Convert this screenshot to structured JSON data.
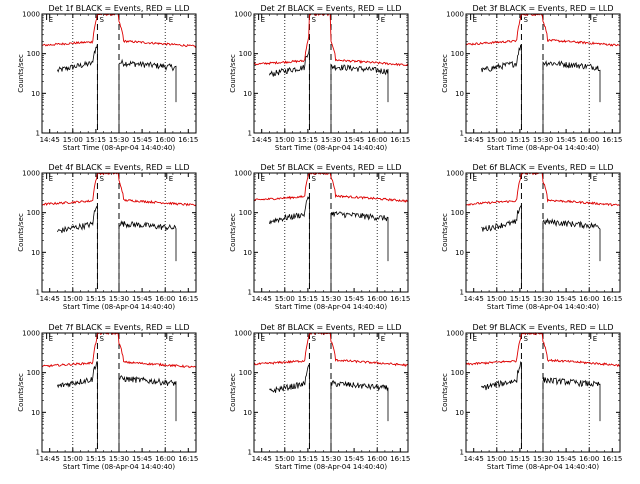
{
  "colors": {
    "events": "#000000",
    "lld": "#dd0000",
    "background": "#ffffff"
  },
  "chart_data": [
    {
      "type": "line",
      "detector": "Det 1f",
      "title": "Det 1f  BLACK = Events, RED = LLD",
      "xlabel": "Start Time (08-Apr-04 14:40:40)",
      "ylabel": "Counts/sec",
      "xticks": [
        "14:45",
        "15:00",
        "15:15",
        "15:30",
        "15:45",
        "16:00",
        "16:15"
      ],
      "yticks": [
        "1",
        "10",
        "100",
        "1000"
      ],
      "yscale": "log",
      "ylim": [
        1,
        1000
      ],
      "markers": [
        {
          "label": "E",
          "x": "14:43"
        },
        {
          "label": "S",
          "x": "15:16"
        },
        {
          "label": "E",
          "x": "16:01"
        }
      ],
      "events_level": 50,
      "lld_level": 180,
      "series": [
        {
          "name": "BLACK = Events",
          "role": "events"
        },
        {
          "name": "RED = LLD",
          "role": "lld"
        }
      ]
    },
    {
      "type": "line",
      "detector": "Det 2f",
      "title": "Det 2f  BLACK = Events, RED = LLD",
      "xlabel": "Start Time (08-Apr-04 14:40:40)",
      "ylabel": "Counts/sec",
      "xticks": [
        "14:45",
        "15:00",
        "15:15",
        "15:30",
        "15:45",
        "16:00",
        "16:15"
      ],
      "yticks": [
        "1",
        "10",
        "100",
        "1000"
      ],
      "yscale": "log",
      "ylim": [
        1,
        1000
      ],
      "markers": [
        {
          "label": "E",
          "x": "14:43"
        },
        {
          "label": "S",
          "x": "15:16"
        },
        {
          "label": "E",
          "x": "16:01"
        }
      ],
      "events_level": 40,
      "lld_level": 60,
      "series": [
        {
          "name": "BLACK = Events",
          "role": "events"
        },
        {
          "name": "RED = LLD",
          "role": "lld"
        }
      ]
    },
    {
      "type": "line",
      "detector": "Det 3f",
      "title": "Det 3f  BLACK = Events, RED = LLD",
      "xlabel": "Start Time (08-Apr-04 14:40:40)",
      "ylabel": "Counts/sec",
      "xticks": [
        "14:45",
        "15:00",
        "15:15",
        "15:30",
        "15:45",
        "16:00",
        "16:15"
      ],
      "yticks": [
        "1",
        "10",
        "100",
        "1000"
      ],
      "yscale": "log",
      "ylim": [
        1,
        1000
      ],
      "markers": [
        {
          "label": "E",
          "x": "14:43"
        },
        {
          "label": "S",
          "x": "15:16"
        },
        {
          "label": "E",
          "x": "16:01"
        }
      ],
      "events_level": 50,
      "lld_level": 190,
      "series": [
        {
          "name": "BLACK = Events",
          "role": "events"
        },
        {
          "name": "RED = LLD",
          "role": "lld"
        }
      ]
    },
    {
      "type": "line",
      "detector": "Det 4f",
      "title": "Det 4f  BLACK = Events, RED = LLD",
      "xlabel": "Start Time (08-Apr-04 14:40:40)",
      "ylabel": "Counts/sec",
      "xticks": [
        "14:45",
        "15:00",
        "15:15",
        "15:30",
        "15:45",
        "16:00",
        "16:15"
      ],
      "yticks": [
        "1",
        "10",
        "100",
        "1000"
      ],
      "yscale": "log",
      "ylim": [
        1,
        1000
      ],
      "markers": [
        {
          "label": "E",
          "x": "14:43"
        },
        {
          "label": "S",
          "x": "15:16"
        },
        {
          "label": "E",
          "x": "16:01"
        }
      ],
      "events_level": 45,
      "lld_level": 180,
      "series": [
        {
          "name": "BLACK = Events",
          "role": "events"
        },
        {
          "name": "RED = LLD",
          "role": "lld"
        }
      ]
    },
    {
      "type": "line",
      "detector": "Det 5f",
      "title": "Det 5f  BLACK = Events, RED = LLD",
      "xlabel": "Start Time (08-Apr-04 14:40:40)",
      "ylabel": "Counts/sec",
      "xticks": [
        "14:45",
        "15:00",
        "15:15",
        "15:30",
        "15:45",
        "16:00",
        "16:15"
      ],
      "yticks": [
        "1",
        "10",
        "100",
        "1000"
      ],
      "yscale": "log",
      "ylim": [
        1,
        1000
      ],
      "markers": [
        {
          "label": "E",
          "x": "14:43"
        },
        {
          "label": "S",
          "x": "15:16"
        },
        {
          "label": "E",
          "x": "16:01"
        }
      ],
      "events_level": 80,
      "lld_level": 230,
      "series": [
        {
          "name": "BLACK = Events",
          "role": "events"
        },
        {
          "name": "RED = LLD",
          "role": "lld"
        }
      ]
    },
    {
      "type": "line",
      "detector": "Det 6f",
      "title": "Det 6f  BLACK = Events, RED = LLD",
      "xlabel": "Start Time (08-Apr-04 14:40:40)",
      "ylabel": "Counts/sec",
      "xticks": [
        "14:45",
        "15:00",
        "15:15",
        "15:30",
        "15:45",
        "16:00",
        "16:15"
      ],
      "yticks": [
        "1",
        "10",
        "100",
        "1000"
      ],
      "yscale": "log",
      "ylim": [
        1,
        1000
      ],
      "markers": [
        {
          "label": "E",
          "x": "14:43"
        },
        {
          "label": "S",
          "x": "15:16"
        },
        {
          "label": "E",
          "x": "16:01"
        }
      ],
      "events_level": 50,
      "lld_level": 180,
      "series": [
        {
          "name": "BLACK = Events",
          "role": "events"
        },
        {
          "name": "RED = LLD",
          "role": "lld"
        }
      ]
    },
    {
      "type": "line",
      "detector": "Det 7f",
      "title": "Det 7f  BLACK = Events, RED = LLD",
      "xlabel": "Start Time (08-Apr-04 14:40:40)",
      "ylabel": "Counts/sec",
      "xticks": [
        "14:45",
        "15:00",
        "15:15",
        "15:30",
        "15:45",
        "16:00",
        "16:15"
      ],
      "yticks": [
        "1",
        "10",
        "100",
        "1000"
      ],
      "yscale": "log",
      "ylim": [
        1,
        1000
      ],
      "markers": [
        {
          "label": "E",
          "x": "14:43"
        },
        {
          "label": "S",
          "x": "15:16"
        },
        {
          "label": "E",
          "x": "16:01"
        }
      ],
      "events_level": 60,
      "lld_level": 160,
      "series": [
        {
          "name": "BLACK = Events",
          "role": "events"
        },
        {
          "name": "RED = LLD",
          "role": "lld"
        }
      ]
    },
    {
      "type": "line",
      "detector": "Det 8f",
      "title": "Det 8f  BLACK = Events, RED = LLD",
      "xlabel": "Start Time (08-Apr-04 14:40:40)",
      "ylabel": "Counts/sec",
      "xticks": [
        "14:45",
        "15:00",
        "15:15",
        "15:30",
        "15:45",
        "16:00",
        "16:15"
      ],
      "yticks": [
        "1",
        "10",
        "100",
        "1000"
      ],
      "yscale": "log",
      "ylim": [
        1,
        1000
      ],
      "markers": [
        {
          "label": "E",
          "x": "14:43"
        },
        {
          "label": "S",
          "x": "15:16"
        },
        {
          "label": "E",
          "x": "16:01"
        }
      ],
      "events_level": 45,
      "lld_level": 180,
      "series": [
        {
          "name": "BLACK = Events",
          "role": "events"
        },
        {
          "name": "RED = LLD",
          "role": "lld"
        }
      ]
    },
    {
      "type": "line",
      "detector": "Det 9f",
      "title": "Det 9f  BLACK = Events, RED = LLD",
      "xlabel": "Start Time (08-Apr-04 14:40:40)",
      "ylabel": "Counts/sec",
      "xticks": [
        "14:45",
        "15:00",
        "15:15",
        "15:30",
        "15:45",
        "16:00",
        "16:15"
      ],
      "yticks": [
        "1",
        "10",
        "100",
        "1000"
      ],
      "yscale": "log",
      "ylim": [
        1,
        1000
      ],
      "markers": [
        {
          "label": "E",
          "x": "14:43"
        },
        {
          "label": "S",
          "x": "15:16"
        },
        {
          "label": "E",
          "x": "16:01"
        }
      ],
      "events_level": 55,
      "lld_level": 180,
      "series": [
        {
          "name": "BLACK = Events",
          "role": "events"
        },
        {
          "name": "RED = LLD",
          "role": "lld"
        }
      ]
    }
  ]
}
